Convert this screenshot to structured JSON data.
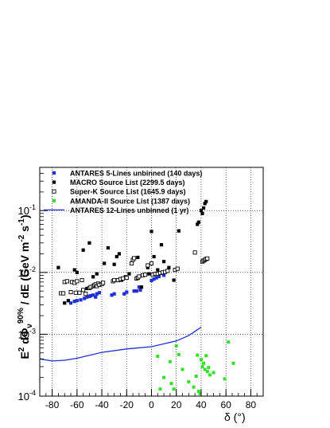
{
  "chart_data": {
    "type": "scatter",
    "title": "",
    "xlabel": "δ (°)",
    "ylabel_parts": {
      "e2": "E",
      "e2_sup": "2",
      "dphi": " dΦ",
      "nu_sub": "ν",
      "cl_sup": "90%",
      "de": " / dE (GeV m",
      "m_sup": "-2",
      "s": " s",
      "s_sup": "-1",
      "close": ")"
    },
    "xlim": [
      -90,
      90
    ],
    "ylim": [
      0.0001,
      0.5
    ],
    "yscale": "log",
    "grid": true,
    "legend_position": "top-left",
    "x_ticks": [
      {
        "value": -80,
        "label": "-80"
      },
      {
        "value": -60,
        "label": "-60"
      },
      {
        "value": -40,
        "label": "-40"
      },
      {
        "value": -20,
        "label": "-20"
      },
      {
        "value": 0,
        "label": "0"
      },
      {
        "value": 20,
        "label": "20"
      },
      {
        "value": 40,
        "label": "40"
      },
      {
        "value": 60,
        "label": "60"
      },
      {
        "value": 80,
        "label": "80"
      }
    ],
    "y_ticks": [
      {
        "value": 0.0001,
        "base": "10",
        "exp": "-4"
      },
      {
        "value": 0.001,
        "base": "10",
        "exp": "-3"
      },
      {
        "value": 0.01,
        "base": "10",
        "exp": "-2"
      },
      {
        "value": 0.1,
        "base": "10",
        "exp": "-1"
      }
    ],
    "series": [
      {
        "name": "ANTARES 5-Lines unbinned (140 days)",
        "color": "#1f2fd6",
        "marker": "filled-square",
        "points": [
          [
            -65,
            0.0032
          ],
          [
            -62,
            0.0034
          ],
          [
            -60,
            0.0035
          ],
          [
            -57,
            0.0036
          ],
          [
            -54,
            0.0038
          ],
          [
            -52,
            0.004
          ],
          [
            -50,
            0.0041
          ],
          [
            -49,
            0.0042
          ],
          [
            -47,
            0.0043
          ],
          [
            -45,
            0.004
          ],
          [
            -44,
            0.0045
          ],
          [
            -42,
            0.0047
          ],
          [
            -32,
            0.0043
          ],
          [
            -30,
            0.0045
          ],
          [
            -22,
            0.0045
          ],
          [
            -20,
            0.0048
          ],
          [
            -14,
            0.005
          ],
          [
            -12,
            0.005
          ],
          [
            -10,
            0.0058
          ],
          [
            -9,
            0.0052
          ],
          [
            0,
            0.0074
          ],
          [
            2,
            0.0078
          ],
          [
            4,
            0.0082
          ],
          [
            6,
            0.0086
          ],
          [
            10,
            0.009
          ]
        ]
      },
      {
        "name": "MACRO Source List (2299.5 days)",
        "color": "#000000",
        "marker": "filled-square",
        "points": [
          [
            -75,
            0.012
          ],
          [
            -70,
            0.0032
          ],
          [
            -67,
            0.0035
          ],
          [
            -62,
            0.011
          ],
          [
            -60,
            0.01
          ],
          [
            -55,
            0.023
          ],
          [
            -52,
            0.0055
          ],
          [
            -50,
            0.03
          ],
          [
            -47,
            0.0085
          ],
          [
            -44,
            0.0095
          ],
          [
            -38,
            0.014
          ],
          [
            -35,
            0.025
          ],
          [
            -30,
            0.0135
          ],
          [
            -28,
            0.018
          ],
          [
            -26,
            0.02
          ],
          [
            -24,
            0.0075
          ],
          [
            -21,
            0.0085
          ],
          [
            -18,
            0.0095
          ],
          [
            -11,
            0.0175
          ],
          [
            -8,
            0.0058
          ],
          [
            -3,
            0.012
          ],
          [
            -2,
            0.0095
          ],
          [
            0,
            0.046
          ],
          [
            2,
            0.018
          ],
          [
            5,
            0.011
          ],
          [
            8,
            0.028
          ],
          [
            10,
            0.015
          ],
          [
            14,
            0.012
          ],
          [
            18,
            0.0075
          ],
          [
            22,
            0.047
          ],
          [
            37,
            0.06
          ],
          [
            38,
            0.065
          ],
          [
            40,
            0.1
          ],
          [
            41,
            0.09
          ],
          [
            42,
            0.11
          ],
          [
            43,
            0.13
          ],
          [
            44,
            0.14
          ]
        ]
      },
      {
        "name": "Super-K Source List (1645.9 days)",
        "color": "#000000",
        "marker": "open-square",
        "points": [
          [
            -73,
            0.0046
          ],
          [
            -71,
            0.0046
          ],
          [
            -70,
            0.007
          ],
          [
            -68,
            0.0072
          ],
          [
            -65,
            0.0048
          ],
          [
            -64,
            0.007
          ],
          [
            -62,
            0.0068
          ],
          [
            -61,
            0.0047
          ],
          [
            -60,
            0.0072
          ],
          [
            -58,
            0.0047
          ],
          [
            -56,
            0.0075
          ],
          [
            -55,
            0.0052
          ],
          [
            -53,
            0.0045
          ],
          [
            -50,
            0.0056
          ],
          [
            -49,
            0.0058
          ],
          [
            -47,
            0.006
          ],
          [
            -46,
            0.0062
          ],
          [
            -45,
            0.0064
          ],
          [
            -44,
            0.006
          ],
          [
            -43,
            0.0066
          ],
          [
            -42,
            0.0063
          ],
          [
            -40,
            0.0065
          ],
          [
            -39,
            0.0068
          ],
          [
            -31,
            0.0072
          ],
          [
            -30,
            0.0075
          ],
          [
            -27,
            0.0075
          ],
          [
            -25,
            0.0078
          ],
          [
            -23,
            0.008
          ],
          [
            -20,
            0.0082
          ],
          [
            -16,
            0.014
          ],
          [
            -15,
            0.016
          ],
          [
            -14,
            0.017
          ],
          [
            -12,
            0.008
          ],
          [
            -11,
            0.0082
          ],
          [
            -10,
            0.0086
          ],
          [
            -7,
            0.009
          ],
          [
            -5,
            0.0092
          ],
          [
            -3,
            0.013
          ],
          [
            0,
            0.014
          ],
          [
            1,
            0.0092
          ],
          [
            3,
            0.0095
          ],
          [
            5,
            0.0095
          ],
          [
            7,
            0.0098
          ],
          [
            9,
            0.01
          ],
          [
            11,
            0.0102
          ],
          [
            13,
            0.0106
          ],
          [
            19,
            0.011
          ],
          [
            21,
            0.0115
          ],
          [
            35,
            0.021
          ],
          [
            41,
            0.015
          ],
          [
            42,
            0.0155
          ],
          [
            43,
            0.016
          ],
          [
            44,
            0.0165
          ],
          [
            45,
            0.0168
          ]
        ]
      },
      {
        "name": "AMANDA-II Source List (1387 days)",
        "color": "#33e02a",
        "marker": "star",
        "points": [
          [
            5,
            0.00044
          ],
          [
            7,
            0.00013
          ],
          [
            10,
            0.0002
          ],
          [
            15,
            0.00036
          ],
          [
            16,
            0.00016
          ],
          [
            18,
            0.00013
          ],
          [
            20,
            0.00065
          ],
          [
            22,
            0.00047
          ],
          [
            25,
            0.00027
          ],
          [
            30,
            0.00017
          ],
          [
            34,
            0.00014
          ],
          [
            36,
            0.00021
          ],
          [
            37,
            0.00046
          ],
          [
            38,
            0.00012
          ],
          [
            39,
            0.00011
          ],
          [
            40,
            0.00039
          ],
          [
            41,
            0.0003
          ],
          [
            42,
            0.00034
          ],
          [
            43,
            0.00027
          ],
          [
            44,
            0.00045
          ],
          [
            45,
            0.00025
          ],
          [
            46,
            0.00029
          ],
          [
            47,
            0.00022
          ],
          [
            50,
            0.00024
          ],
          [
            59,
            0.00019
          ],
          [
            62,
            0.00075
          ],
          [
            66,
            0.00034
          ]
        ]
      },
      {
        "name": "ANTARES 12-Lines unbinned (1 yr)",
        "color": "#1f2fd6",
        "marker": "line",
        "points": [
          [
            -90,
            0.0004
          ],
          [
            -80,
            0.00037
          ],
          [
            -70,
            0.00038
          ],
          [
            -60,
            0.00041
          ],
          [
            -40,
            0.00051
          ],
          [
            -20,
            0.00058
          ],
          [
            0,
            0.00063
          ],
          [
            20,
            0.00078
          ],
          [
            30,
            0.00095
          ],
          [
            40,
            0.0013
          ]
        ]
      }
    ]
  }
}
